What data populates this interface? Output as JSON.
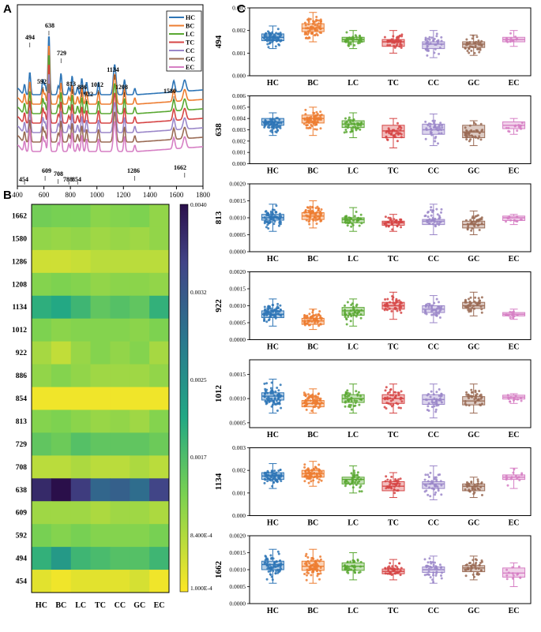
{
  "panels": {
    "a": "A",
    "b": "B",
    "c": "C"
  },
  "groups": [
    "HC",
    "BC",
    "LC",
    "TC",
    "CC",
    "GC",
    "EC"
  ],
  "colors": {
    "HC": "#2e75b6",
    "BC": "#ed7d31",
    "LC": "#5aa832",
    "TC": "#d64545",
    "CC": "#9b87c9",
    "GC": "#9a6b55",
    "EC": "#d67fc4"
  },
  "chart_data": [
    {
      "id": "spectra",
      "type": "line",
      "title": "",
      "x_ticks": [
        "400",
        "600",
        "800",
        "1000",
        "1200",
        "1400",
        "1600",
        "1800"
      ],
      "xlim": [
        400,
        1800
      ],
      "legend": [
        "HC",
        "BC",
        "LC",
        "TC",
        "CC",
        "GC",
        "EC"
      ],
      "legend_position": "top-right",
      "peak_labels": [
        "494",
        "638",
        "592",
        "729",
        "813",
        "886",
        "922",
        "1012",
        "1134",
        "1208",
        "1580",
        "609",
        "708",
        "788",
        "854",
        "1286",
        "1662",
        "454"
      ],
      "peaks": [
        454,
        494,
        592,
        609,
        638,
        708,
        729,
        788,
        813,
        854,
        886,
        922,
        1012,
        1134,
        1208,
        1286,
        1580,
        1662
      ]
    },
    {
      "id": "heatmap",
      "type": "heatmap",
      "rows": [
        "1662",
        "1580",
        "1286",
        "1208",
        "1134",
        "1012",
        "922",
        "886",
        "854",
        "813",
        "729",
        "708",
        "638",
        "609",
        "592",
        "494",
        "454"
      ],
      "columns": [
        "HC",
        "BC",
        "LC",
        "TC",
        "CC",
        "GC",
        "EC"
      ],
      "colorbar_ticks": [
        "0.0040",
        "0.0032",
        "0.0025",
        "0.0017",
        "8.400E-4",
        "1.000E-4"
      ],
      "vmin": 0.0001,
      "vmax": 0.004,
      "values": [
        [
          0.00115,
          0.0011,
          0.0011,
          0.00095,
          0.001,
          0.00105,
          0.0009
        ],
        [
          0.0009,
          0.00085,
          0.0009,
          0.0008,
          0.00085,
          0.0008,
          0.0009
        ],
        [
          0.00045,
          0.00045,
          0.0005,
          0.0006,
          0.0006,
          0.0006,
          0.0006
        ],
        [
          0.001,
          0.00105,
          0.001,
          0.0009,
          0.00095,
          0.00095,
          0.0009
        ],
        [
          0.00175,
          0.00185,
          0.0016,
          0.0013,
          0.0014,
          0.0013,
          0.0017
        ],
        [
          0.00105,
          0.00095,
          0.001,
          0.001,
          0.001,
          0.00095,
          0.00105
        ],
        [
          0.00075,
          0.00055,
          0.00085,
          0.001,
          0.0009,
          0.001,
          0.00075
        ],
        [
          0.0009,
          0.001,
          0.0009,
          0.0008,
          0.0008,
          0.0008,
          0.0009
        ],
        [
          0.0002,
          0.0002,
          0.0002,
          0.0002,
          0.0002,
          0.0002,
          0.0002
        ],
        [
          0.001,
          0.00105,
          0.00095,
          0.00085,
          0.0009,
          0.0008,
          0.001
        ],
        [
          0.0013,
          0.0012,
          0.0014,
          0.0013,
          0.0013,
          0.0013,
          0.0012
        ],
        [
          0.0006,
          0.0006,
          0.0007,
          0.0006,
          0.0006,
          0.0007,
          0.0006
        ],
        [
          0.0037,
          0.004,
          0.0035,
          0.0029,
          0.003,
          0.0028,
          0.0034
        ],
        [
          0.0008,
          0.0008,
          0.0008,
          0.0007,
          0.0008,
          0.0008,
          0.0007
        ],
        [
          0.0011,
          0.001,
          0.0011,
          0.001,
          0.001,
          0.001,
          0.0011
        ],
        [
          0.0017,
          0.0021,
          0.0016,
          0.0015,
          0.0014,
          0.0014,
          0.0016
        ],
        [
          0.0003,
          0.0002,
          0.0003,
          0.0003,
          0.0003,
          0.0004,
          0.0002
        ]
      ]
    },
    {
      "id": "box-494",
      "type": "box",
      "ylabel": "494",
      "y_ticks": [
        "0.000",
        "0.001",
        "0.002",
        "0.003"
      ],
      "ylim": [
        0,
        0.003
      ],
      "medians": [
        0.0017,
        0.0021,
        0.0016,
        0.0015,
        0.0014,
        0.0014,
        0.0016
      ],
      "q1": [
        0.00155,
        0.00195,
        0.0015,
        0.0013,
        0.0012,
        0.00125,
        0.0015
      ],
      "q3": [
        0.00185,
        0.0023,
        0.0017,
        0.0016,
        0.0015,
        0.0015,
        0.0017
      ],
      "whisker_low": [
        0.0012,
        0.0015,
        0.0012,
        0.001,
        0.0008,
        0.0009,
        0.0013
      ],
      "whisker_high": [
        0.0022,
        0.0028,
        0.002,
        0.002,
        0.002,
        0.0018,
        0.002
      ]
    },
    {
      "id": "box-638",
      "type": "box",
      "ylabel": "638",
      "y_ticks": [
        "0.000",
        "0.001",
        "0.002",
        "0.003",
        "0.004",
        "0.005",
        "0.006"
      ],
      "ylim": [
        0,
        0.006
      ],
      "medians": [
        0.0037,
        0.004,
        0.0035,
        0.0029,
        0.003,
        0.0028,
        0.0034
      ],
      "q1": [
        0.0034,
        0.0036,
        0.0032,
        0.0023,
        0.0026,
        0.0023,
        0.0031
      ],
      "q3": [
        0.004,
        0.0043,
        0.0038,
        0.0034,
        0.0035,
        0.0034,
        0.0037
      ],
      "whisker_low": [
        0.0025,
        0.0025,
        0.0023,
        0.0014,
        0.0016,
        0.0016,
        0.0026
      ],
      "whisker_high": [
        0.0045,
        0.005,
        0.0045,
        0.004,
        0.0044,
        0.0038,
        0.004
      ]
    },
    {
      "id": "box-813",
      "type": "box",
      "ylabel": "813",
      "y_ticks": [
        "0.0000",
        "0.0005",
        "0.0010",
        "0.0015",
        "0.0020"
      ],
      "ylim": [
        0,
        0.002
      ],
      "medians": [
        0.001,
        0.00105,
        0.00095,
        0.00085,
        0.0009,
        0.0008,
        0.001
      ],
      "q1": [
        0.00093,
        0.00095,
        0.00085,
        0.00078,
        0.0008,
        0.0007,
        0.00092
      ],
      "q3": [
        0.0011,
        0.00115,
        0.001,
        0.0009,
        0.00095,
        0.0009,
        0.00105
      ],
      "whisker_low": [
        0.0006,
        0.0007,
        0.0006,
        0.0006,
        0.0005,
        0.0005,
        0.0008
      ],
      "whisker_high": [
        0.0014,
        0.0015,
        0.0013,
        0.0011,
        0.0014,
        0.0012,
        0.0011
      ]
    },
    {
      "id": "box-922",
      "type": "box",
      "ylabel": "922",
      "y_ticks": [
        "0.0000",
        "0.0005",
        "0.0010",
        "0.0015",
        "0.0020"
      ],
      "ylim": [
        0,
        0.002
      ],
      "medians": [
        0.00075,
        0.00055,
        0.00085,
        0.001,
        0.0009,
        0.001,
        0.00075
      ],
      "q1": [
        0.00065,
        0.00045,
        0.00072,
        0.0009,
        0.0008,
        0.00092,
        0.0007
      ],
      "q3": [
        0.00085,
        0.00063,
        0.00095,
        0.0011,
        0.001,
        0.0011,
        0.0008
      ],
      "whisker_low": [
        0.0004,
        0.0003,
        0.0004,
        0.0006,
        0.0005,
        0.0007,
        0.0006
      ],
      "whisker_high": [
        0.0012,
        0.0009,
        0.0012,
        0.0014,
        0.0013,
        0.0014,
        0.0009
      ]
    },
    {
      "id": "box-1012",
      "type": "box",
      "ylabel": "1012",
      "y_ticks": [
        "0.0005",
        "0.0010",
        "0.0015"
      ],
      "ylim": [
        0.0004,
        0.0018
      ],
      "medians": [
        0.00105,
        0.0009,
        0.001,
        0.001,
        0.00098,
        0.00095,
        0.00103
      ],
      "q1": [
        0.00097,
        0.00083,
        0.00092,
        0.0009,
        0.00088,
        0.00087,
        0.00099
      ],
      "q3": [
        0.00112,
        0.00096,
        0.00108,
        0.00108,
        0.00108,
        0.00104,
        0.00107
      ],
      "whisker_low": [
        0.0007,
        0.0007,
        0.0007,
        0.0007,
        0.0006,
        0.0007,
        0.0009
      ],
      "whisker_high": [
        0.0014,
        0.0012,
        0.0013,
        0.0013,
        0.0013,
        0.0013,
        0.0011
      ]
    },
    {
      "id": "box-1134",
      "type": "box",
      "ylabel": "1134",
      "y_ticks": [
        "0.000",
        "0.001",
        "0.002",
        "0.003"
      ],
      "ylim": [
        0,
        0.003
      ],
      "medians": [
        0.00175,
        0.00185,
        0.0016,
        0.0013,
        0.0014,
        0.0013,
        0.0017
      ],
      "q1": [
        0.0016,
        0.0017,
        0.0014,
        0.0011,
        0.0012,
        0.0011,
        0.0016
      ],
      "q3": [
        0.0019,
        0.002,
        0.0017,
        0.0015,
        0.0015,
        0.0014,
        0.0018
      ],
      "whisker_low": [
        0.0012,
        0.0013,
        0.001,
        0.0008,
        0.0007,
        0.0008,
        0.0012
      ],
      "whisker_high": [
        0.0023,
        0.0024,
        0.0022,
        0.0019,
        0.0022,
        0.0017,
        0.0021
      ]
    },
    {
      "id": "box-1662",
      "type": "box",
      "ylabel": "1662",
      "y_ticks": [
        "0.0000",
        "0.0005",
        "0.0010",
        "0.0015",
        "0.0020"
      ],
      "ylim": [
        0,
        0.002
      ],
      "medians": [
        0.00115,
        0.0011,
        0.0011,
        0.00095,
        0.001,
        0.00105,
        0.0009
      ],
      "q1": [
        0.001,
        0.00098,
        0.00098,
        0.00088,
        0.00092,
        0.00094,
        0.00078
      ],
      "q3": [
        0.00125,
        0.00125,
        0.0012,
        0.00102,
        0.00108,
        0.00112,
        0.00105
      ],
      "whisker_low": [
        0.0006,
        0.0006,
        0.0007,
        0.0007,
        0.0006,
        0.0007,
        0.0005
      ],
      "whisker_high": [
        0.0016,
        0.0016,
        0.0015,
        0.0013,
        0.0014,
        0.0014,
        0.0012
      ]
    }
  ]
}
